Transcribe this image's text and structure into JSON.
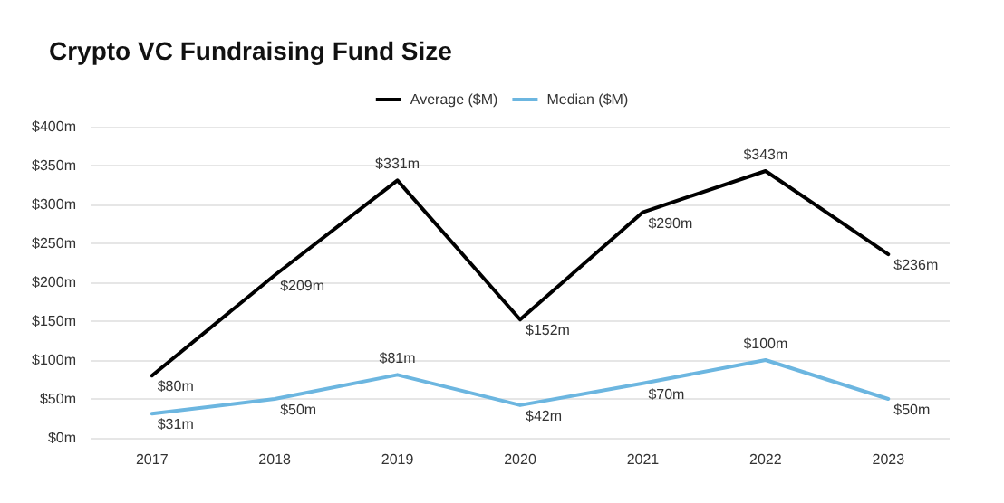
{
  "chart_data": {
    "type": "line",
    "title": "Crypto VC Fundraising Fund Size",
    "categories": [
      "2017",
      "2018",
      "2019",
      "2020",
      "2021",
      "2022",
      "2023"
    ],
    "series": [
      {
        "name": "Average ($M)",
        "color": "#000000",
        "values": [
          80,
          209,
          331,
          152,
          290,
          343,
          236
        ],
        "value_labels": [
          "$80m",
          "$209m",
          "$331m",
          "$152m",
          "$290m",
          "$343m",
          "$236m"
        ]
      },
      {
        "name": "Median ($M)",
        "color": "#6cb6e0",
        "values": [
          31,
          50,
          81,
          42,
          70,
          100,
          50
        ],
        "value_labels": [
          "$31m",
          "$50m",
          "$81m",
          "$42m",
          "$70m",
          "$100m",
          "$50m"
        ]
      }
    ],
    "ylim": [
      0,
      400
    ],
    "yticks": [
      {
        "value": 0,
        "label": "$0m"
      },
      {
        "value": 50,
        "label": "$50m"
      },
      {
        "value": 100,
        "label": "$100m"
      },
      {
        "value": 150,
        "label": "$150m"
      },
      {
        "value": 200,
        "label": "$200m"
      },
      {
        "value": 250,
        "label": "$250m"
      },
      {
        "value": 300,
        "label": "$300m"
      },
      {
        "value": 350,
        "label": "$350m"
      },
      {
        "value": 400,
        "label": "$400m"
      }
    ],
    "grid": "y",
    "legend": "top",
    "marker": "none",
    "line_style": "solid"
  }
}
